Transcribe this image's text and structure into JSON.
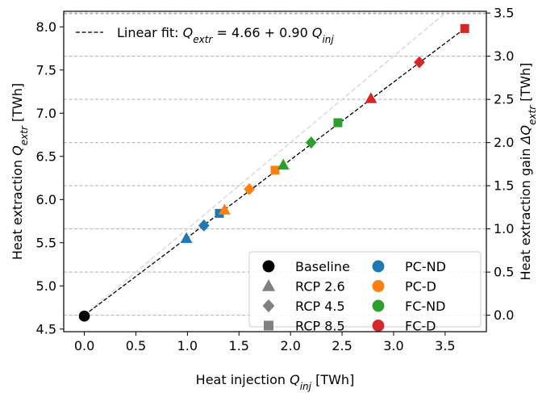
{
  "chart_data": {
    "type": "scatter",
    "xlabel": "Heat injection Q_inj [TWh]",
    "ylabel_left": "Heat extraction Q_extr [TWh]",
    "ylabel_right": "Heat extraction gain ΔQ_extr [TWh]",
    "xlim": [
      -0.2,
      3.9
    ],
    "ylim_left": [
      4.47,
      8.18
    ],
    "ylim_right": [
      -0.19,
      3.52
    ],
    "x_ticks": [
      "0.0",
      "0.5",
      "1.0",
      "1.5",
      "2.0",
      "2.5",
      "3.0",
      "3.5"
    ],
    "y_left_ticks": [
      "4.5",
      "5.0",
      "5.5",
      "6.0",
      "6.5",
      "7.0",
      "7.5",
      "8.0"
    ],
    "y_right_ticks": [
      "0.0",
      "0.5",
      "1.0",
      "1.5",
      "2.0",
      "2.5",
      "3.0",
      "3.5"
    ],
    "grid": "horizontal dashed lines at right-axis ticks",
    "fit": {
      "label": "Linear fit: Q_extr = 4.66 + 0.90 Q_inj",
      "intercept": 4.66,
      "slope": 0.9,
      "x_range": [
        0.0,
        3.69
      ]
    },
    "reference_line": {
      "intercept": 4.66,
      "slope": 1.0,
      "color": "#d9d9d9"
    },
    "colors": {
      "Baseline": "#000000",
      "PC-ND": "#1f77b4",
      "PC-D": "#ff7f0e",
      "FC-ND": "#2ca02c",
      "FC-D": "#d62728"
    },
    "points": [
      {
        "scenario": "Baseline",
        "rcp": "Baseline",
        "marker": "circle",
        "x": 0.0,
        "y": 4.65
      },
      {
        "scenario": "PC-ND",
        "rcp": "RCP 2.6",
        "marker": "triangle",
        "x": 0.99,
        "y": 5.55
      },
      {
        "scenario": "PC-ND",
        "rcp": "RCP 4.5",
        "marker": "diamond",
        "x": 1.16,
        "y": 5.7
      },
      {
        "scenario": "PC-ND",
        "rcp": "RCP 8.5",
        "marker": "square",
        "x": 1.31,
        "y": 5.84
      },
      {
        "scenario": "PC-D",
        "rcp": "RCP 2.6",
        "marker": "triangle",
        "x": 1.36,
        "y": 5.88
      },
      {
        "scenario": "PC-D",
        "rcp": "RCP 4.5",
        "marker": "diamond",
        "x": 1.6,
        "y": 6.12
      },
      {
        "scenario": "PC-D",
        "rcp": "RCP 8.5",
        "marker": "square",
        "x": 1.85,
        "y": 6.34
      },
      {
        "scenario": "FC-ND",
        "rcp": "RCP 2.6",
        "marker": "triangle",
        "x": 1.93,
        "y": 6.4
      },
      {
        "scenario": "FC-ND",
        "rcp": "RCP 4.5",
        "marker": "diamond",
        "x": 2.2,
        "y": 6.66
      },
      {
        "scenario": "FC-ND",
        "rcp": "RCP 8.5",
        "marker": "square",
        "x": 2.46,
        "y": 6.89
      },
      {
        "scenario": "FC-D",
        "rcp": "RCP 2.6",
        "marker": "triangle",
        "x": 2.78,
        "y": 7.17
      },
      {
        "scenario": "FC-D",
        "rcp": "RCP 4.5",
        "marker": "diamond",
        "x": 3.25,
        "y": 7.59
      },
      {
        "scenario": "FC-D",
        "rcp": "RCP 8.5",
        "marker": "square",
        "x": 3.69,
        "y": 7.98
      }
    ],
    "legend": {
      "placement": "lower-right",
      "columns": [
        [
          {
            "label": "Baseline",
            "marker": "circle",
            "color": "#000000"
          },
          {
            "label": "RCP 2.6",
            "marker": "triangle",
            "color": "#808080"
          },
          {
            "label": "RCP 4.5",
            "marker": "diamond",
            "color": "#808080"
          },
          {
            "label": "RCP 8.5",
            "marker": "square",
            "color": "#808080"
          }
        ],
        [
          {
            "label": "PC-ND",
            "marker": "circle",
            "color": "#1f77b4"
          },
          {
            "label": "PC-D",
            "marker": "circle",
            "color": "#ff7f0e"
          },
          {
            "label": "FC-ND",
            "marker": "circle",
            "color": "#2ca02c"
          },
          {
            "label": "FC-D",
            "marker": "circle",
            "color": "#d62728"
          }
        ]
      ]
    }
  }
}
